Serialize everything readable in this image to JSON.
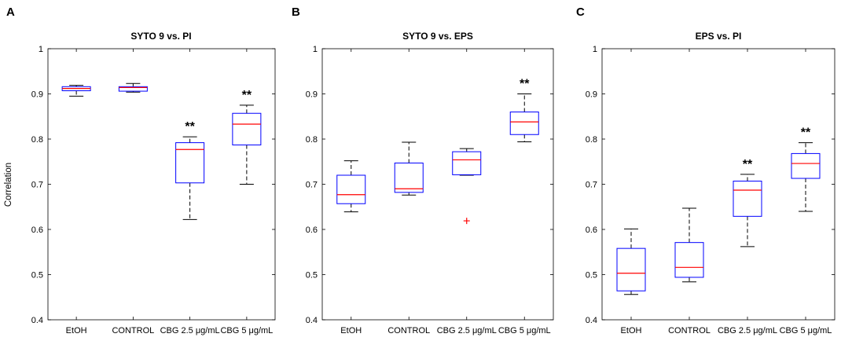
{
  "figure": {
    "ylabel": "Correlation",
    "yticks": [
      "0.4",
      "0.5",
      "0.6",
      "0.7",
      "0.8",
      "0.9",
      "1"
    ]
  },
  "colors": {
    "box": "#0000ff",
    "median": "#ff0000",
    "whisker": "#000000",
    "outlier": "#ff0000",
    "axis": "#000000"
  },
  "chart_data": [
    {
      "panel_label": "A",
      "type": "box",
      "title": "SYTO 9 vs. PI",
      "ylabel": "Correlation",
      "ylim": [
        0.4,
        1.0
      ],
      "categories": [
        "EtOH",
        "CONTROL",
        "CBG 2.5 μg/mL",
        "CBG 5 μg/mL"
      ],
      "boxes": [
        {
          "min": 0.895,
          "q1": 0.907,
          "median": 0.912,
          "q3": 0.916,
          "max": 0.919,
          "outliers": [],
          "annotation": ""
        },
        {
          "min": 0.904,
          "q1": 0.906,
          "median": 0.914,
          "q3": 0.916,
          "max": 0.923,
          "outliers": [],
          "annotation": ""
        },
        {
          "min": 0.622,
          "q1": 0.703,
          "median": 0.777,
          "q3": 0.792,
          "max": 0.805,
          "outliers": [],
          "annotation": "**"
        },
        {
          "min": 0.7,
          "q1": 0.787,
          "median": 0.833,
          "q3": 0.857,
          "max": 0.875,
          "outliers": [],
          "annotation": "**"
        }
      ]
    },
    {
      "panel_label": "B",
      "type": "box",
      "title": "SYTO 9 vs. EPS",
      "ylabel": "",
      "ylim": [
        0.4,
        1.0
      ],
      "categories": [
        "EtOH",
        "CONTROL",
        "CBG 2.5 μg/mL",
        "CBG 5 μg/mL"
      ],
      "boxes": [
        {
          "min": 0.639,
          "q1": 0.657,
          "median": 0.677,
          "q3": 0.72,
          "max": 0.752,
          "outliers": [],
          "annotation": ""
        },
        {
          "min": 0.676,
          "q1": 0.682,
          "median": 0.69,
          "q3": 0.747,
          "max": 0.793,
          "outliers": [],
          "annotation": ""
        },
        {
          "min": 0.72,
          "q1": 0.721,
          "median": 0.754,
          "q3": 0.772,
          "max": 0.779,
          "outliers": [
            0.619
          ],
          "annotation": ""
        },
        {
          "min": 0.794,
          "q1": 0.81,
          "median": 0.838,
          "q3": 0.86,
          "max": 0.9,
          "outliers": [],
          "annotation": "**"
        }
      ]
    },
    {
      "panel_label": "C",
      "type": "box",
      "title": "EPS vs. PI",
      "ylabel": "",
      "ylim": [
        0.4,
        1.0
      ],
      "categories": [
        "EtOH",
        "CONTROL",
        "CBG 2.5 μg/mL",
        "CBG 5 μg/mL"
      ],
      "boxes": [
        {
          "min": 0.456,
          "q1": 0.464,
          "median": 0.503,
          "q3": 0.558,
          "max": 0.601,
          "outliers": [],
          "annotation": ""
        },
        {
          "min": 0.484,
          "q1": 0.494,
          "median": 0.516,
          "q3": 0.571,
          "max": 0.647,
          "outliers": [],
          "annotation": ""
        },
        {
          "min": 0.562,
          "q1": 0.629,
          "median": 0.687,
          "q3": 0.707,
          "max": 0.722,
          "outliers": [],
          "annotation": "**"
        },
        {
          "min": 0.64,
          "q1": 0.713,
          "median": 0.746,
          "q3": 0.768,
          "max": 0.792,
          "outliers": [],
          "annotation": "**"
        }
      ]
    }
  ]
}
